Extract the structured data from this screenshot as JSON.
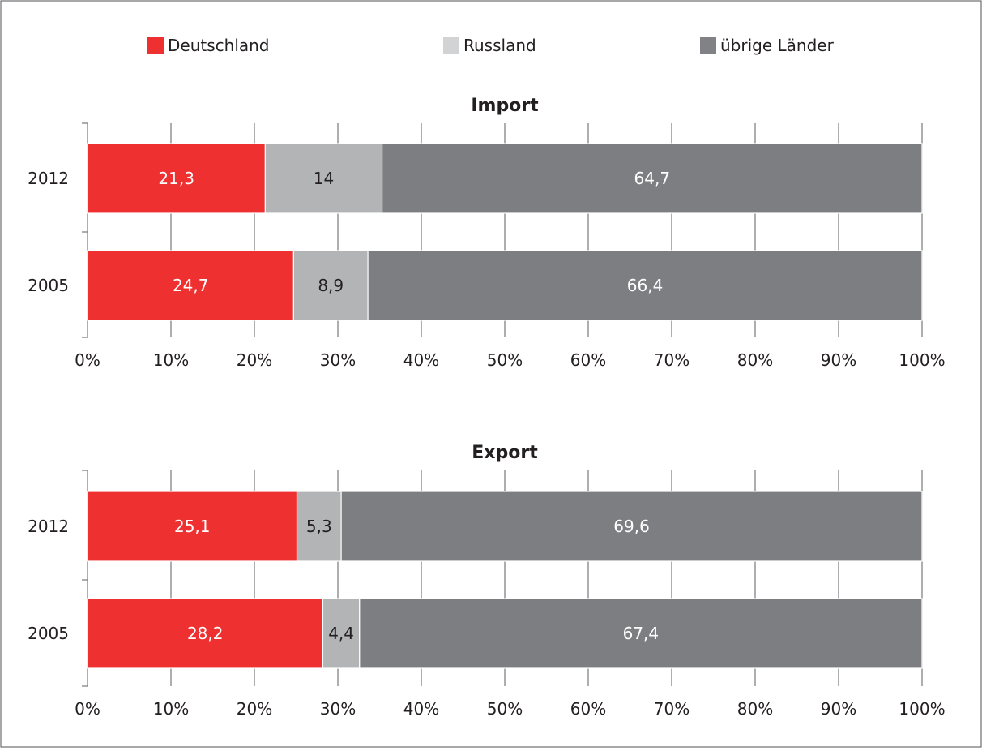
{
  "chart_data": {
    "type": "bar",
    "orientation": "horizontal",
    "stacked": true,
    "legend": {
      "position": "top",
      "entries": [
        {
          "name": "Deutschland",
          "color": "#EE3130"
        },
        {
          "name": "Russland",
          "color": "#D1D3D4"
        },
        {
          "name": "übrige Länder",
          "color": "#808285"
        }
      ]
    },
    "xlim": [
      0,
      100
    ],
    "x_ticks": [
      "0%",
      "10%",
      "20%",
      "30%",
      "40%",
      "50%",
      "60%",
      "70%",
      "80%",
      "90%",
      "100%"
    ],
    "grid": "vertical",
    "panels": [
      {
        "title": "Import",
        "categories": [
          "2012",
          "2005"
        ],
        "series": [
          {
            "name": "Deutschland",
            "color": "#EE3130",
            "label_color": "#ffffff",
            "values": [
              21.3,
              24.7
            ],
            "labels": [
              "21,3",
              "24,7"
            ]
          },
          {
            "name": "Russland",
            "color": "#B2B4B6",
            "label_color": "#231f20",
            "values": [
              14,
              8.9
            ],
            "labels": [
              "14",
              "8,9"
            ]
          },
          {
            "name": "übrige Länder",
            "color": "#7D7E82",
            "label_color": "#ffffff",
            "values": [
              64.7,
              66.4
            ],
            "labels": [
              "64,7",
              "66,4"
            ]
          }
        ]
      },
      {
        "title": "Export",
        "categories": [
          "2012",
          "2005"
        ],
        "series": [
          {
            "name": "Deutschland",
            "color": "#EE3130",
            "label_color": "#ffffff",
            "values": [
              25.1,
              28.2
            ],
            "labels": [
              "25,1",
              "28,2"
            ]
          },
          {
            "name": "Russland",
            "color": "#B2B4B6",
            "label_color": "#231f20",
            "values": [
              5.3,
              4.4
            ],
            "labels": [
              "5,3",
              "4,4"
            ]
          },
          {
            "name": "übrige Länder",
            "color": "#7D7E82",
            "label_color": "#ffffff",
            "values": [
              69.6,
              67.4
            ],
            "labels": [
              "69,6",
              "67,4"
            ]
          }
        ]
      }
    ]
  }
}
